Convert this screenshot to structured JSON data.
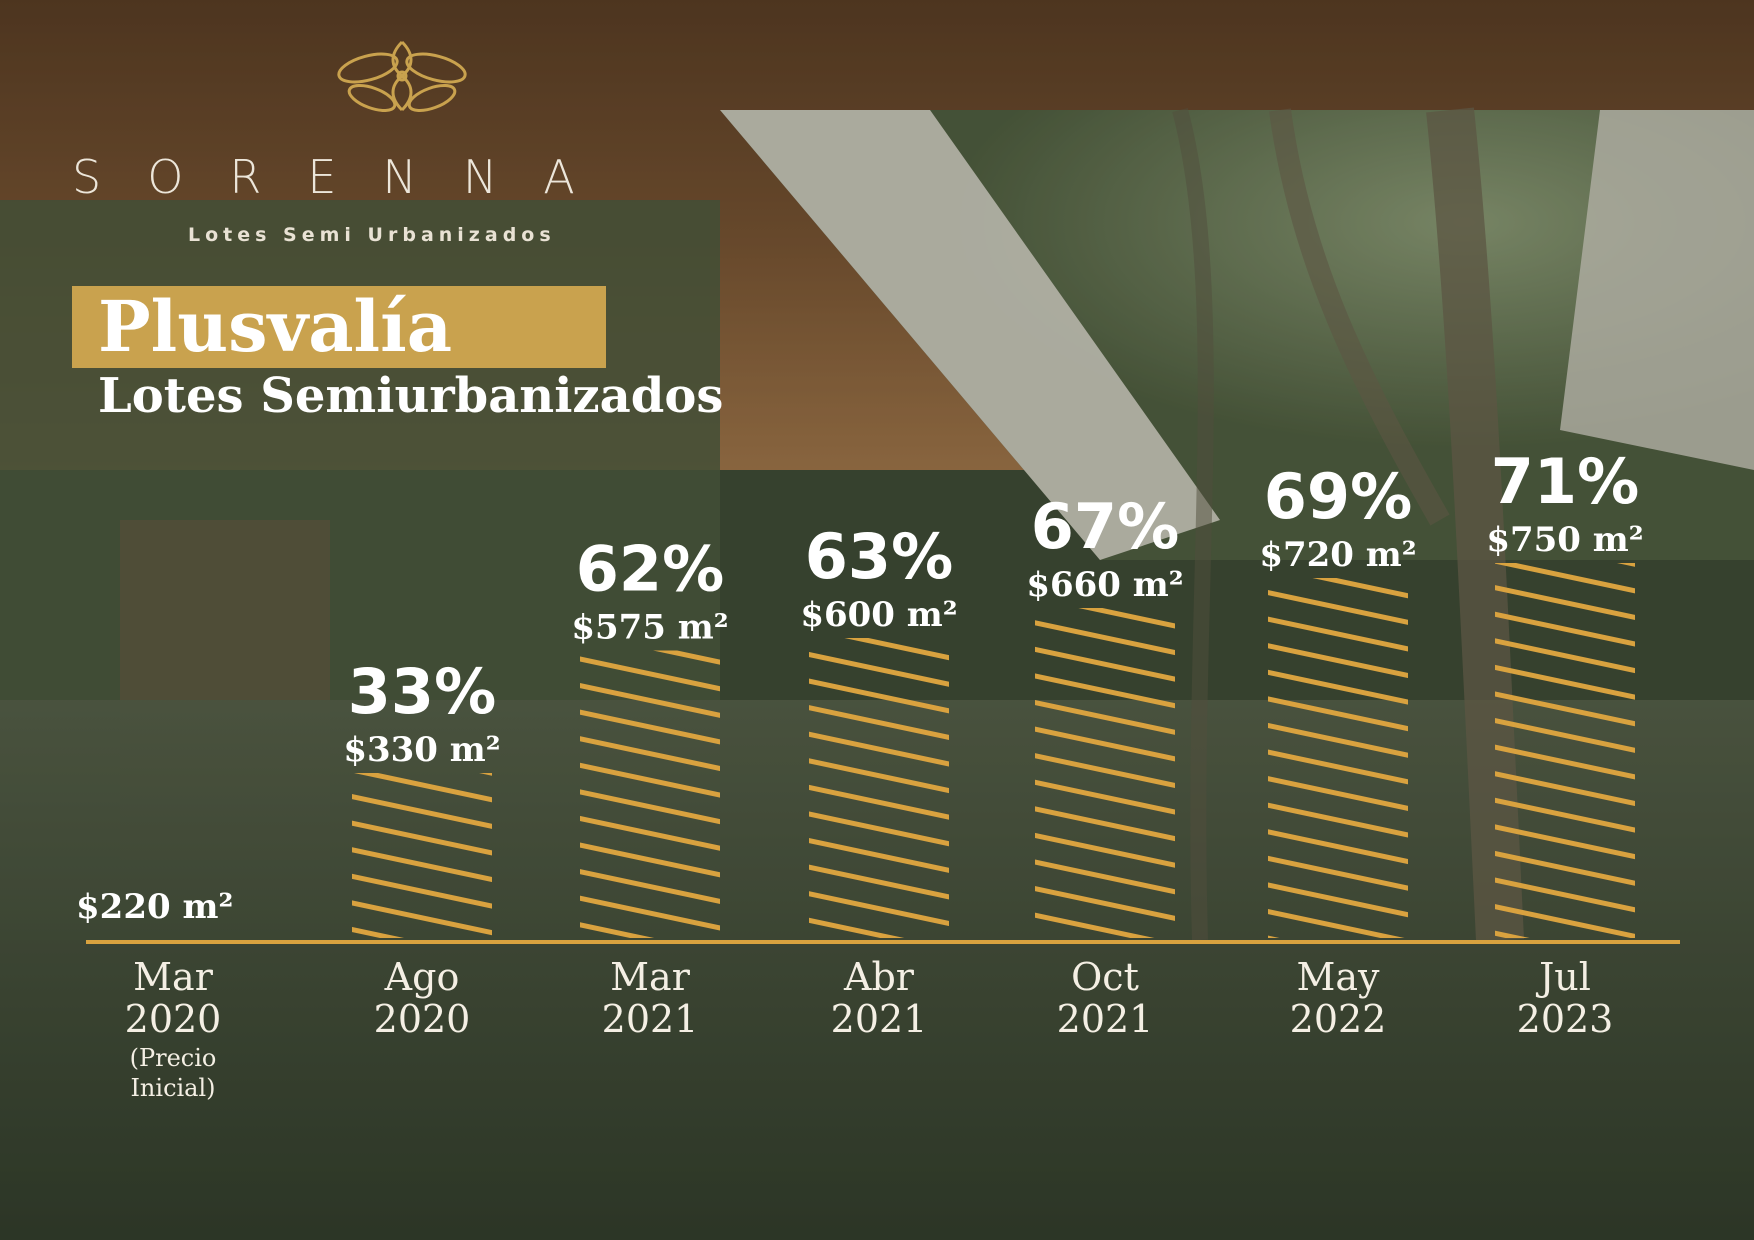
{
  "brand": {
    "name": "SORENNA",
    "tagline": "Lotes Semi Urbanizados"
  },
  "colors": {
    "gold": "#d9a23f",
    "accent_band": "#c9a24e",
    "text": "#ffffff"
  },
  "chart_data": {
    "type": "bar",
    "title": "Plusvalía",
    "subtitle": "Lotes Semiurbanizados",
    "xlabel": "",
    "ylabel": "",
    "bar_pattern": "diagonal-hatch",
    "categories": [
      [
        "Mar",
        "2020",
        "(Precio",
        "Inicial)"
      ],
      [
        "Ago",
        "2020"
      ],
      [
        "Mar",
        "2021"
      ],
      [
        "Abr",
        "2021"
      ],
      [
        "Oct",
        "2021"
      ],
      [
        "May",
        "2022"
      ],
      [
        "Jul",
        "2023"
      ]
    ],
    "values": [
      220,
      330,
      575,
      600,
      660,
      720,
      750
    ],
    "price_labels": [
      "$220 m²",
      "$330 m²",
      "$575 m²",
      "$600 m²",
      "$660 m²",
      "$720 m²",
      "$750 m²"
    ],
    "percent_labels": [
      "",
      "33%",
      "62%",
      "63%",
      "67%",
      "69%",
      "71%"
    ],
    "ylim": [
      0,
      800
    ]
  }
}
